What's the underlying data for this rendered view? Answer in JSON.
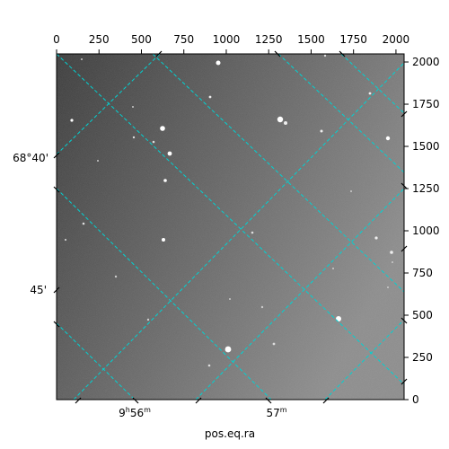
{
  "image": {
    "type": "astronomical-image",
    "description_visible": "grayscale star field with cyan WCS coordinate grid",
    "colors": {
      "grid": "#00d2d2",
      "background_dark": "#3a3a3a",
      "background_light": "#8a8a8a",
      "stars": "#ffffff",
      "frame": "#000000"
    }
  },
  "axes": {
    "xlabel": "pos.eq.ra",
    "top_ticks": [
      "0",
      "250",
      "500",
      "750",
      "1000",
      "1250",
      "1500",
      "1750",
      "2000"
    ],
    "right_ticks": [
      "0",
      "250",
      "500",
      "750",
      "1000",
      "1250",
      "1500",
      "1750",
      "2000"
    ],
    "pixel_range": [
      0,
      2048
    ],
    "bottom_ra_labels": [
      {
        "value": "9",
        "unit": "h",
        "value2": "56",
        "unit2": "m"
      },
      {
        "value": "57",
        "unit": "m"
      }
    ],
    "left_dec_labels": [
      "68°40'",
      "45'"
    ]
  }
}
